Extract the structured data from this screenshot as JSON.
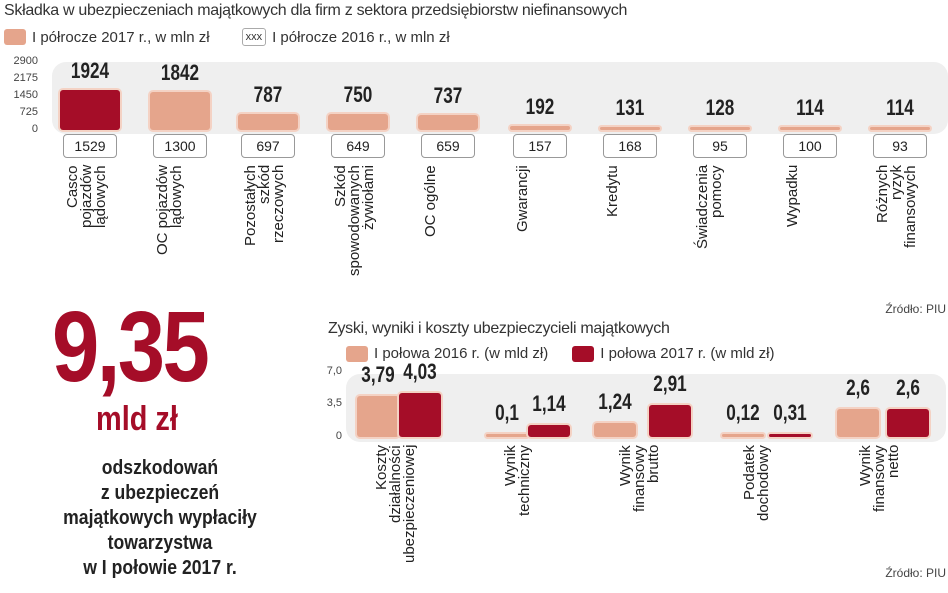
{
  "chart_data": [
    {
      "type": "bar",
      "title": "Składka w ubezpieczeniach majątkowych dla firm z sektora przedsiębiorstw niefinansowych",
      "legend": {
        "current": "I półrocze 2017 r., w mln zł",
        "previous_marker": "xxx",
        "previous": "I półrocze 2016 r., w mln zł"
      },
      "yticks": [
        "2900",
        "2175",
        "1450",
        "725",
        "0"
      ],
      "ylim": [
        0,
        2900
      ],
      "categories": [
        "Casco\npojazdów\nlądowych",
        "OC pojazdów\nlądowych",
        "Pozostałych\nszkód\nrzeczowych",
        "Szkód\nspowodowanych\nżywiołami",
        "OC ogólne",
        "Gwarancji",
        "Kredytu",
        "Świadczenia\npomocy",
        "Wypadku",
        "Różnych\nryzyk\nfinansowych"
      ],
      "series": [
        {
          "name": "I półrocze 2017 r., w mln zł",
          "values": [
            1924,
            1842,
            787,
            750,
            737,
            192,
            131,
            128,
            114,
            114
          ],
          "labels": [
            "1924",
            "1842",
            "787",
            "750",
            "737",
            "192",
            "131",
            "128",
            "114",
            "114"
          ]
        },
        {
          "name": "I półrocze 2016 r., w mln zł",
          "values": [
            1529,
            1300,
            697,
            649,
            659,
            157,
            168,
            95,
            100,
            93
          ],
          "labels": [
            "1529",
            "1300",
            "697",
            "649",
            "659",
            "157",
            "168",
            "95",
            "100",
            "93"
          ]
        }
      ],
      "highlight_color": "#a50d28",
      "bar_color": "#e5a58c",
      "source": "Źródło: PIU"
    },
    {
      "type": "bar",
      "title": "Zyski, wyniki i koszty ubezpieczycieli majątkowych",
      "yticks": [
        "7,0",
        "3,5",
        "0"
      ],
      "ylim": [
        0,
        7.0
      ],
      "categories": [
        "Koszty\ndziałalności\nubezpieczeniowej",
        "Wynik\ntechniczny",
        "Wynik\nfinansowy\nbrutto",
        "Podatek\ndochodowy",
        "Wynik\nfinansowy\nnetto"
      ],
      "series": [
        {
          "name": "I połowa 2016 r. (w mld zł)",
          "color": "#e5a58c",
          "values": [
            3.79,
            0.1,
            1.24,
            0.12,
            2.6
          ],
          "labels": [
            "3,79",
            "0,1",
            "1,24",
            "0,12",
            "2,6"
          ]
        },
        {
          "name": "I połowa 2017 r. (w mld zł)",
          "color": "#a50d28",
          "values": [
            4.03,
            1.14,
            2.91,
            0.31,
            2.6
          ],
          "labels": [
            "4,03",
            "1,14",
            "2,91",
            "0,31",
            "2,6"
          ]
        }
      ],
      "source": "Źródło: PIU"
    }
  ],
  "highlight": {
    "value": "9,35",
    "unit": "mld zł",
    "text": "odszkodowań\nz ubezpieczeń\nmajątkowych wypłaciły\ntowarzystwa\nw I połowie 2017 r."
  }
}
